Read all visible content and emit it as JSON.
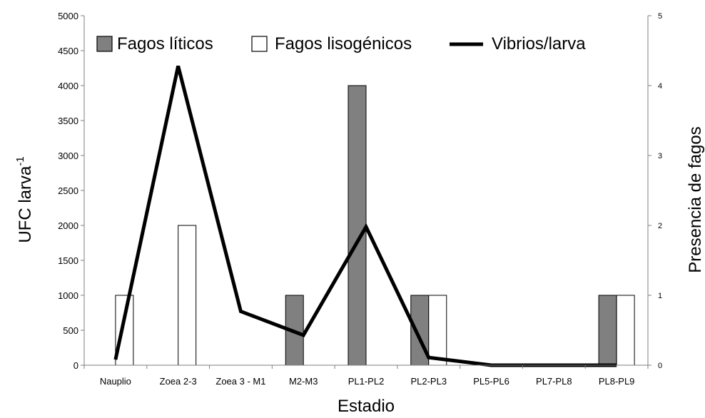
{
  "chart_data": {
    "type": "bar",
    "categories": [
      "Nauplio",
      "Zoea 2-3",
      "Zoea 3 - M1",
      "M2-M3",
      "PL1-PL2",
      "PL2-PL3",
      "PL5-PL6",
      "PL7-PL8",
      "PL8-PL9"
    ],
    "series": [
      {
        "name": "Fagos líticos",
        "type": "bar",
        "axis": "right",
        "color": "#808080",
        "values": [
          0,
          0,
          0,
          1,
          4,
          1,
          0,
          0,
          1
        ]
      },
      {
        "name": "Fagos lisogénicos",
        "type": "bar",
        "axis": "right",
        "color": "#ffffff",
        "values": [
          1,
          2,
          0,
          0,
          0,
          1,
          0,
          0,
          1
        ]
      },
      {
        "name": "Vibrios/larva",
        "type": "line",
        "axis": "left",
        "color": "#000000",
        "values": [
          80,
          4280,
          770,
          430,
          1980,
          110,
          0,
          0,
          0
        ]
      }
    ],
    "xlabel": "Estadio",
    "ylabel_main": "UFC larva",
    "ylabel_sup": "-1",
    "y2label": "Presencia de fagos",
    "ylim": [
      0,
      5000
    ],
    "yticks": [
      0,
      500,
      1000,
      1500,
      2000,
      2500,
      3000,
      3500,
      4000,
      4500,
      5000
    ],
    "y2lim": [
      0,
      5
    ],
    "y2ticks": [
      0,
      1,
      2,
      3,
      4,
      5
    ],
    "grid": false,
    "legend_position": "top"
  }
}
